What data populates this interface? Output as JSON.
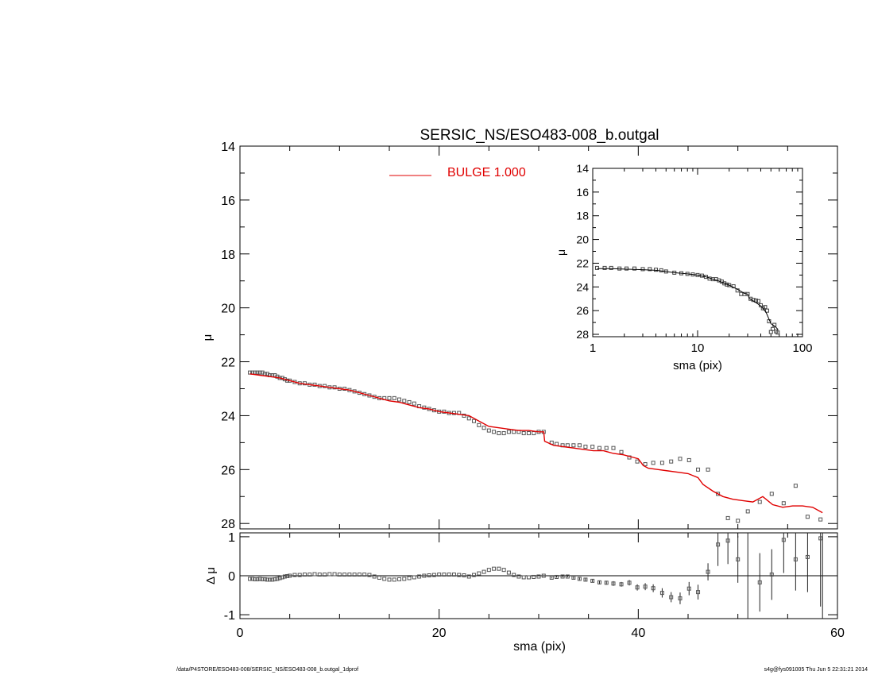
{
  "page": {
    "footer_left": "/data/P4STORE/ESO483-008/SERSIC_NS/ESO483-008_b.outgal_1dprof",
    "footer_right": "s4g@fys091005  Thu Jun  5 22:31:21 2014"
  },
  "chart_data": [
    {
      "id": "main",
      "type": "scatter",
      "title": "SERSIC_NS/ESO483-008_b.outgal",
      "xlabel": "",
      "ylabel": "μ",
      "xlim": [
        0,
        60
      ],
      "ylim": [
        28.2,
        14
      ],
      "y_inverted": true,
      "yticks": [
        14,
        16,
        18,
        20,
        22,
        24,
        26,
        28
      ],
      "legend": {
        "label": "BULGE  1.000",
        "color": "#e00000",
        "placement": "top-center"
      },
      "series": [
        {
          "kind": "points",
          "color": "#555555",
          "x": [
            1.0,
            1.25,
            1.5,
            1.75,
            2.0,
            2.25,
            2.5,
            2.75,
            3.0,
            3.25,
            3.5,
            3.75,
            4.0,
            4.25,
            4.5,
            4.75,
            5.0,
            5.5,
            6.0,
            6.5,
            7.0,
            7.5,
            8.0,
            8.5,
            9.0,
            9.5,
            10.0,
            10.5,
            11.0,
            11.5,
            12.0,
            12.5,
            13.0,
            13.5,
            14.0,
            14.5,
            15.0,
            15.5,
            16.0,
            16.5,
            17.0,
            17.5,
            18.0,
            18.5,
            19.0,
            19.5,
            20.0,
            20.5,
            21.0,
            21.5,
            22.0,
            22.5,
            23.0,
            23.5,
            24.0,
            24.5,
            25.0,
            25.5,
            26.0,
            26.5,
            27.0,
            27.5,
            28.0,
            28.5,
            29.0,
            29.5,
            30.0,
            30.5,
            31.3,
            31.8,
            32.4,
            32.9,
            33.5,
            34.1,
            34.7,
            35.4,
            36.1,
            36.8,
            37.5,
            38.3,
            39.1,
            39.9,
            40.7,
            41.5,
            42.4,
            43.3,
            44.2,
            45.1,
            46.0,
            47.0,
            48.0,
            49.0,
            50.0,
            51.0,
            52.2,
            53.4,
            54.6,
            55.8,
            57.0,
            58.3
          ],
          "y": [
            22.4,
            22.4,
            22.4,
            22.4,
            22.4,
            22.4,
            22.45,
            22.45,
            22.5,
            22.5,
            22.5,
            22.55,
            22.6,
            22.6,
            22.65,
            22.7,
            22.7,
            22.75,
            22.8,
            22.8,
            22.85,
            22.85,
            22.9,
            22.9,
            22.95,
            22.95,
            23.0,
            23.0,
            23.05,
            23.1,
            23.15,
            23.2,
            23.25,
            23.3,
            23.35,
            23.35,
            23.35,
            23.35,
            23.4,
            23.45,
            23.5,
            23.55,
            23.65,
            23.7,
            23.75,
            23.8,
            23.85,
            23.85,
            23.9,
            23.9,
            23.9,
            24.0,
            24.1,
            24.2,
            24.35,
            24.45,
            24.55,
            24.6,
            24.65,
            24.65,
            24.6,
            24.6,
            24.6,
            24.65,
            24.65,
            24.65,
            24.6,
            24.6,
            25.0,
            25.05,
            25.1,
            25.1,
            25.1,
            25.1,
            25.15,
            25.15,
            25.2,
            25.2,
            25.2,
            25.35,
            25.55,
            25.7,
            25.8,
            25.75,
            25.75,
            25.7,
            25.6,
            25.65,
            26.0,
            26.0,
            26.9,
            27.8,
            27.9,
            27.55,
            27.2,
            26.9,
            27.25,
            26.6,
            27.75,
            27.85
          ]
        },
        {
          "kind": "line",
          "name": "BULGE  1.000",
          "color": "#e00000",
          "x": [
            1.0,
            2.0,
            3.0,
            4.0,
            5.0,
            6.0,
            7.0,
            8.0,
            9.0,
            10.0,
            11.0,
            12.0,
            13.0,
            14.0,
            15.0,
            16.0,
            17.0,
            18.0,
            19.0,
            20.0,
            21.0,
            22.0,
            23.0,
            24.0,
            25.0,
            26.0,
            27.0,
            28.0,
            29.0,
            30.0,
            30.5,
            30.6,
            31.5,
            32.5,
            33.5,
            34.5,
            35.5,
            36.5,
            37.5,
            38.5,
            39.5,
            40.0,
            40.5,
            41.0,
            42.0,
            43.0,
            44.0,
            45.0,
            46.0,
            46.5,
            47.5,
            48.5,
            49.5,
            50.5,
            51.5,
            52.5,
            53.5,
            54.5,
            55.5,
            56.5,
            57.5,
            58.5
          ],
          "y": [
            22.45,
            22.5,
            22.55,
            22.6,
            22.7,
            22.8,
            22.85,
            22.9,
            22.95,
            23.0,
            23.05,
            23.15,
            23.25,
            23.35,
            23.45,
            23.5,
            23.6,
            23.7,
            23.75,
            23.85,
            23.9,
            23.95,
            24.0,
            24.2,
            24.4,
            24.45,
            24.5,
            24.55,
            24.55,
            24.6,
            24.6,
            24.95,
            25.1,
            25.15,
            25.2,
            25.25,
            25.3,
            25.3,
            25.4,
            25.45,
            25.55,
            25.6,
            25.85,
            25.95,
            26.0,
            26.05,
            26.1,
            26.15,
            26.3,
            26.55,
            26.8,
            27.0,
            27.1,
            27.15,
            27.2,
            27.0,
            27.3,
            27.4,
            27.35,
            27.35,
            27.4,
            27.6
          ]
        }
      ]
    },
    {
      "id": "inset",
      "type": "scatter",
      "xlabel": "sma (pix)",
      "ylabel": "μ",
      "xscale": "log",
      "xlim": [
        1,
        100
      ],
      "ylim": [
        28.2,
        14
      ],
      "y_inverted": true,
      "yticks": [
        14,
        16,
        18,
        20,
        22,
        24,
        26,
        28
      ],
      "xticks": [
        1,
        10,
        100
      ],
      "xtick_labels": [
        "1",
        "10",
        "100"
      ],
      "series": [
        {
          "kind": "points",
          "color": "#444444",
          "x": [
            1.1,
            1.3,
            1.5,
            1.8,
            2.1,
            2.5,
            3.0,
            3.5,
            4.0,
            4.5,
            5.0,
            6.0,
            7.0,
            8.0,
            9.0,
            10.0,
            11.0,
            12.0,
            13.0,
            14.0,
            15.0,
            16.0,
            17.0,
            18.0,
            19.0,
            20.0,
            22.0,
            24.0,
            26.0,
            28.0,
            30.0,
            32.0,
            34.0,
            36.0,
            38.0,
            40.0,
            42.0,
            44.0,
            46.0,
            48.0,
            50.0,
            52.0,
            54.0,
            56.0,
            58.0
          ],
          "y": [
            22.4,
            22.4,
            22.4,
            22.45,
            22.45,
            22.45,
            22.5,
            22.5,
            22.55,
            22.6,
            22.7,
            22.8,
            22.85,
            22.9,
            22.95,
            23.0,
            23.05,
            23.15,
            23.3,
            23.35,
            23.35,
            23.45,
            23.55,
            23.7,
            23.8,
            23.85,
            23.95,
            24.3,
            24.6,
            24.6,
            24.6,
            25.0,
            25.1,
            25.15,
            25.2,
            25.55,
            25.8,
            25.7,
            26.0,
            26.9,
            27.8,
            27.55,
            27.2,
            27.75,
            27.85
          ]
        },
        {
          "kind": "line",
          "color": "#000000",
          "x": [
            1.1,
            1.5,
            2.0,
            3.0,
            4.0,
            5.0,
            6.0,
            8.0,
            10.0,
            12.0,
            14.0,
            16.0,
            18.0,
            20.0,
            24.0,
            28.0,
            30.0,
            31.0,
            35.0,
            40.0,
            45.0,
            50.0,
            55.0,
            58.5
          ],
          "y": [
            22.45,
            22.45,
            22.5,
            22.55,
            22.6,
            22.7,
            22.8,
            22.9,
            23.0,
            23.15,
            23.35,
            23.5,
            23.7,
            23.85,
            24.2,
            24.55,
            24.6,
            24.95,
            25.25,
            25.6,
            26.15,
            27.1,
            27.35,
            27.6
          ]
        }
      ]
    },
    {
      "id": "residual",
      "type": "scatter",
      "xlabel": "sma (pix)",
      "ylabel": "Δ μ",
      "xlim": [
        0,
        60
      ],
      "ylim": [
        -1.1,
        1.1
      ],
      "yticks": [
        -1,
        0,
        1
      ],
      "xticks": [
        0,
        20,
        40,
        60
      ],
      "reference_line": 0,
      "series": [
        {
          "kind": "points",
          "color": "#555555",
          "x": [
            1.0,
            1.25,
            1.5,
            1.75,
            2.0,
            2.25,
            2.5,
            2.75,
            3.0,
            3.25,
            3.5,
            3.75,
            4.0,
            4.25,
            4.5,
            4.75,
            5.0,
            5.5,
            6.0,
            6.5,
            7.0,
            7.5,
            8.0,
            8.5,
            9.0,
            9.5,
            10.0,
            10.5,
            11.0,
            11.5,
            12.0,
            12.5,
            13.0,
            13.5,
            14.0,
            14.5,
            15.0,
            15.5,
            16.0,
            16.5,
            17.0,
            17.5,
            18.0,
            18.5,
            19.0,
            19.5,
            20.0,
            20.5,
            21.0,
            21.5,
            22.0,
            22.5,
            23.0,
            23.5,
            24.0,
            24.5,
            25.0,
            25.5,
            26.0,
            26.5,
            27.0,
            27.5,
            28.0,
            28.5,
            29.0,
            29.5,
            30.0,
            30.5,
            31.3,
            31.8,
            32.4,
            32.9,
            33.5,
            34.1,
            34.7,
            35.4,
            36.1,
            36.8,
            37.5,
            38.3,
            39.1,
            39.9,
            40.7,
            41.5,
            42.4,
            43.3,
            44.2,
            45.1,
            46.0,
            47.0,
            48.0,
            49.0,
            50.0,
            52.2,
            53.4,
            54.6,
            55.8,
            57.0,
            58.3
          ],
          "y": [
            -0.08,
            -0.08,
            -0.09,
            -0.09,
            -0.08,
            -0.09,
            -0.09,
            -0.1,
            -0.1,
            -0.1,
            -0.09,
            -0.08,
            -0.06,
            -0.04,
            -0.02,
            -0.01,
            0.0,
            0.02,
            0.02,
            0.03,
            0.03,
            0.04,
            0.03,
            0.03,
            0.04,
            0.04,
            0.03,
            0.03,
            0.03,
            0.03,
            0.03,
            0.03,
            0.02,
            -0.02,
            -0.05,
            -0.08,
            -0.1,
            -0.1,
            -0.09,
            -0.08,
            -0.06,
            -0.04,
            -0.02,
            0.0,
            0.01,
            0.02,
            0.03,
            0.03,
            0.03,
            0.03,
            0.02,
            0.01,
            -0.02,
            0.02,
            0.06,
            0.1,
            0.15,
            0.18,
            0.18,
            0.15,
            0.08,
            0.02,
            -0.02,
            -0.04,
            -0.04,
            -0.03,
            -0.02,
            0.0,
            -0.05,
            -0.03,
            -0.02,
            -0.02,
            -0.05,
            -0.08,
            -0.1,
            -0.13,
            -0.17,
            -0.18,
            -0.2,
            -0.22,
            -0.18,
            -0.3,
            -0.28,
            -0.32,
            -0.44,
            -0.55,
            -0.58,
            -0.33,
            -0.42,
            0.1,
            0.8,
            0.9,
            0.42,
            -0.17,
            0.03,
            0.92,
            0.42,
            0.48,
            0.96
          ],
          "yerr": [
            0,
            0,
            0,
            0,
            0,
            0,
            0,
            0,
            0,
            0,
            0,
            0,
            0,
            0,
            0,
            0,
            0,
            0,
            0,
            0,
            0,
            0,
            0,
            0,
            0,
            0,
            0,
            0,
            0,
            0,
            0,
            0,
            0,
            0,
            0,
            0,
            0,
            0,
            0,
            0,
            0,
            0,
            0,
            0,
            0,
            0,
            0,
            0,
            0,
            0,
            0,
            0,
            0,
            0,
            0,
            0,
            0,
            0,
            0,
            0,
            0,
            0,
            0,
            0,
            0,
            0,
            0,
            0,
            0.02,
            0.02,
            0.02,
            0.02,
            0.03,
            0.03,
            0.04,
            0.04,
            0.05,
            0.05,
            0.06,
            0.06,
            0.07,
            0.08,
            0.09,
            0.1,
            0.12,
            0.13,
            0.15,
            0.17,
            0.19,
            0.22,
            0.55,
            0.6,
            0.6,
            0.75,
            0.65,
            0.85,
            0.8,
            0.9,
            1.75
          ]
        }
      ],
      "extra_bars": [
        {
          "x": 51.0,
          "ymin": -1.1,
          "ymax": 1.1
        },
        {
          "x": 58.5,
          "ymin": -1.1,
          "ymax": 1.1
        }
      ]
    }
  ]
}
